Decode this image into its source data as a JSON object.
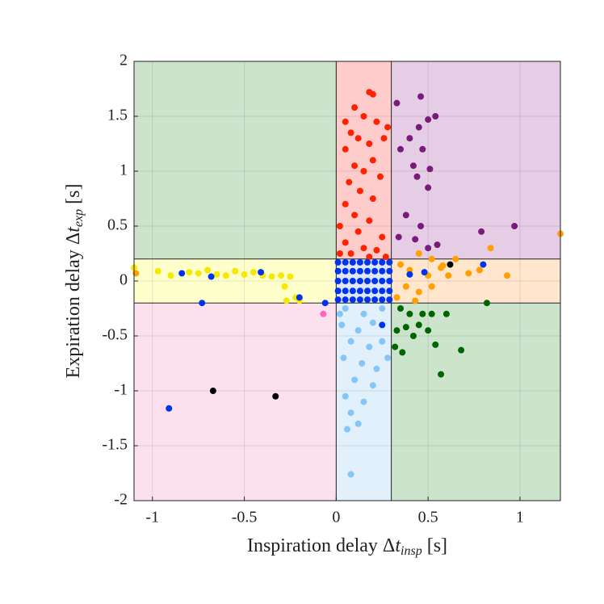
{
  "chart_data": {
    "type": "scatter",
    "xlabel": {
      "text": "Inspiration delay Δ",
      "var": "t",
      "sub": "insp",
      "unit": "[s]"
    },
    "ylabel": {
      "text": "Expiration delay Δ",
      "var": "t",
      "sub": "exp",
      "unit": "[s]"
    },
    "xlim": [
      -1.1,
      1.22
    ],
    "ylim": [
      -2,
      2
    ],
    "xticks": [
      -1,
      -0.5,
      0,
      0.5,
      1
    ],
    "yticks": [
      -2,
      -1.5,
      -1,
      -0.5,
      0,
      0.5,
      1,
      1.5,
      2
    ],
    "grid": true,
    "thresholds": {
      "x": [
        0,
        0.3
      ],
      "y": [
        -0.2,
        0.2
      ]
    },
    "region_colors": [
      [
        "#cde4cc",
        "#ffcccc",
        "#e6cde6"
      ],
      [
        "#ffffcc",
        "#dfe6fb",
        "#ffe6cc"
      ],
      [
        "#fde0ee",
        "#e1f0fb",
        "#cde4cc"
      ]
    ],
    "series": [
      {
        "color": "#f5e900",
        "x": [
          -1.1,
          -0.97,
          -0.9,
          -0.8,
          -0.75,
          -0.7,
          -0.65,
          -0.6,
          -0.55,
          -0.5,
          -0.45,
          -0.4,
          -0.35,
          -0.3,
          -0.28,
          -0.25,
          -0.22,
          -0.2,
          -0.27
        ],
        "y": [
          0.12,
          0.09,
          0.05,
          0.08,
          0.07,
          0.1,
          0.06,
          0.05,
          0.09,
          0.06,
          0.08,
          0.05,
          0.04,
          0.05,
          -0.05,
          0.04,
          -0.15,
          -0.18,
          -0.18
        ]
      },
      {
        "color": "#ff2200",
        "x": [
          0.18,
          0.2,
          0.1,
          0.15,
          0.05,
          0.22,
          0.08,
          0.12,
          0.18,
          0.2,
          0.05,
          0.1,
          0.15,
          0.24,
          0.07,
          0.13,
          0.2,
          0.05,
          0.1,
          0.18,
          0.02,
          0.12,
          0.25,
          0.05,
          0.15,
          0.22,
          0.02,
          0.08,
          0.18,
          0.27,
          0.28,
          0.26
        ],
        "y": [
          1.72,
          1.7,
          1.58,
          1.5,
          1.45,
          1.45,
          1.35,
          1.3,
          1.25,
          1.1,
          1.2,
          1.05,
          1.0,
          0.95,
          0.9,
          0.82,
          0.75,
          0.7,
          0.6,
          0.55,
          0.5,
          0.45,
          0.4,
          0.35,
          0.3,
          0.28,
          0.25,
          0.25,
          0.22,
          0.22,
          1.4,
          1.3
        ]
      },
      {
        "color": "#7a1a7a",
        "x": [
          0.33,
          0.46,
          0.45,
          0.5,
          0.54,
          0.4,
          0.35,
          0.47,
          0.42,
          0.51,
          0.44,
          0.5,
          0.38,
          0.46,
          0.97,
          0.79,
          0.5,
          0.34,
          0.43,
          0.55
        ],
        "y": [
          1.62,
          1.68,
          1.4,
          1.47,
          1.5,
          1.3,
          1.2,
          1.2,
          1.05,
          1.02,
          0.95,
          0.85,
          0.6,
          0.5,
          0.5,
          0.45,
          0.3,
          0.4,
          0.38,
          0.33
        ]
      },
      {
        "color": "#ffa000",
        "x": [
          1.22,
          0.84,
          0.45,
          0.52,
          0.35,
          0.4,
          0.5,
          0.57,
          0.61,
          0.72,
          0.78,
          0.93,
          0.38,
          0.45,
          0.52,
          0.33,
          0.43,
          -1.09,
          0.58,
          0.65
        ],
        "y": [
          0.43,
          0.3,
          0.25,
          0.2,
          0.15,
          0.1,
          0.05,
          0.12,
          0.05,
          0.07,
          0.1,
          0.05,
          -0.05,
          -0.1,
          -0.05,
          -0.15,
          -0.18,
          0.07,
          0.14,
          0.2
        ]
      },
      {
        "color": "#006400",
        "x": [
          0.35,
          0.4,
          0.47,
          0.52,
          0.33,
          0.38,
          0.45,
          0.5,
          0.32,
          0.36,
          0.42,
          0.54,
          0.57,
          0.68,
          0.82,
          0.6
        ],
        "y": [
          -0.25,
          -0.3,
          -0.3,
          -0.3,
          -0.45,
          -0.42,
          -0.4,
          -0.45,
          -0.6,
          -0.65,
          -0.5,
          -0.58,
          -0.85,
          -0.63,
          -0.2,
          -0.3
        ]
      },
      {
        "color": "#85c6f7",
        "x": [
          0.05,
          0.15,
          0.25,
          0.03,
          0.12,
          0.2,
          0.08,
          0.18,
          0.25,
          0.04,
          0.14,
          0.22,
          0.1,
          0.2,
          0.05,
          0.15,
          0.08,
          0.06,
          0.12,
          0.08,
          0.28,
          0.02
        ],
        "y": [
          -0.25,
          -0.3,
          -0.25,
          -0.4,
          -0.45,
          -0.38,
          -0.55,
          -0.6,
          -0.55,
          -0.7,
          -0.75,
          -0.8,
          -0.9,
          -0.95,
          -1.05,
          -1.1,
          -1.2,
          -1.35,
          -1.3,
          -1.76,
          -0.7,
          -0.3
        ]
      },
      {
        "color": "#ff66bb",
        "x": [
          -0.07
        ],
        "y": [
          -0.3
        ]
      },
      {
        "color": "#000000",
        "x": [
          -0.67,
          -0.33,
          0.62
        ],
        "y": [
          -1.0,
          -1.05,
          0.15
        ]
      },
      {
        "color": "#0033ee",
        "x": [
          -0.91,
          -0.73,
          -0.84,
          -0.68,
          -0.41,
          -0.2,
          -0.06,
          0.8,
          0.25,
          0.4,
          0.48,
          0.01,
          0.01,
          0.01,
          0.01,
          0.01,
          0.05,
          0.05,
          0.05,
          0.05,
          0.05,
          0.09,
          0.09,
          0.09,
          0.09,
          0.09,
          0.13,
          0.13,
          0.13,
          0.13,
          0.13,
          0.17,
          0.17,
          0.17,
          0.17,
          0.17,
          0.21,
          0.21,
          0.21,
          0.21,
          0.21,
          0.25,
          0.25,
          0.25,
          0.25,
          0.25,
          0.29,
          0.29,
          0.29,
          0.29,
          0.29
        ],
        "y": [
          -1.16,
          -0.2,
          0.07,
          0.04,
          0.08,
          -0.15,
          -0.2,
          0.15,
          -0.4,
          0.06,
          0.08,
          -0.17,
          -0.09,
          0,
          0.09,
          0.17,
          -0.17,
          -0.09,
          0,
          0.09,
          0.17,
          -0.17,
          -0.09,
          0,
          0.09,
          0.17,
          -0.17,
          -0.09,
          0,
          0.09,
          0.17,
          -0.17,
          -0.09,
          0,
          0.09,
          0.17,
          -0.17,
          -0.09,
          0,
          0.09,
          0.17,
          -0.17,
          -0.09,
          0,
          0.09,
          0.17,
          -0.17,
          -0.09,
          0,
          0.09,
          0.17
        ]
      }
    ]
  }
}
